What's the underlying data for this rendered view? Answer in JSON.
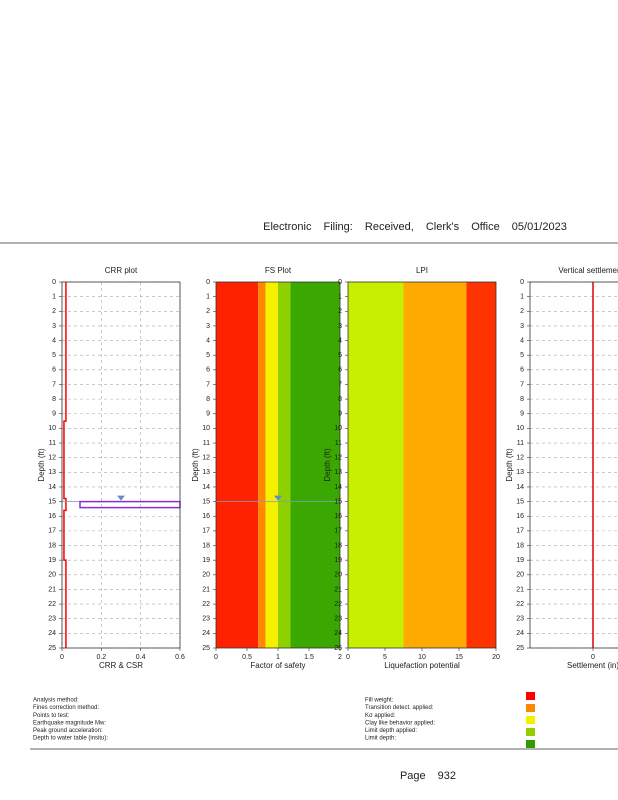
{
  "header": {
    "text": "Electronic Filing: Received, Clerk's Office 05/01/2023"
  },
  "plots": [
    {
      "type": "line",
      "title": "CRR plot",
      "xlabel": "CRR & CSR",
      "ylabel": "Depth (ft)",
      "xlim": [
        0,
        0.6
      ],
      "xticks": [
        0,
        0.2,
        0.4,
        0.6
      ],
      "ylim": [
        0,
        25
      ],
      "yticks": [
        0,
        1,
        2,
        3,
        4,
        5,
        6,
        7,
        8,
        9,
        10,
        11,
        12,
        13,
        14,
        15,
        16,
        17,
        18,
        19,
        20,
        21,
        22,
        23,
        24,
        25
      ],
      "series": [
        {
          "color": "#ff0000",
          "depth": [
            0,
            9.5,
            9.5,
            14.8,
            14.8,
            15.6,
            15.6,
            19,
            19,
            25
          ],
          "values": [
            0.02,
            0.02,
            0.01,
            0.01,
            0.02,
            0.02,
            0.01,
            0.01,
            0.02,
            0.02
          ]
        }
      ],
      "water_depth": 15,
      "water_color": "#8a2be2"
    },
    {
      "type": "bands",
      "title": "FS Plot",
      "xlabel": "Factor of safety",
      "ylabel": "Depth (ft)",
      "xlim": [
        0,
        2
      ],
      "xticks": [
        0,
        0.5,
        1,
        1.5,
        2
      ],
      "ylim": [
        0,
        25
      ],
      "yticks": [
        0,
        1,
        2,
        3,
        4,
        5,
        6,
        7,
        8,
        9,
        10,
        11,
        12,
        13,
        14,
        15,
        16,
        17,
        18,
        19,
        20,
        21,
        22,
        23,
        24,
        25
      ],
      "bands": [
        {
          "from": 0,
          "to": 0.68,
          "color": "#ff2200"
        },
        {
          "from": 0.68,
          "to": 0.8,
          "color": "#ff8800"
        },
        {
          "from": 0.8,
          "to": 1.0,
          "color": "#f5f000"
        },
        {
          "from": 1.0,
          "to": 1.2,
          "color": "#8fd000"
        },
        {
          "from": 1.2,
          "to": 2,
          "color": "#3aa800"
        }
      ],
      "water_depth": 15
    },
    {
      "type": "bands",
      "title": "LPI",
      "xlabel": "Liquefaction potential",
      "ylabel": "Depth (ft)",
      "xlim": [
        0,
        20
      ],
      "xticks": [
        0,
        5,
        10,
        15,
        20
      ],
      "ylim": [
        0,
        25
      ],
      "yticks": [
        0,
        1,
        2,
        3,
        4,
        5,
        6,
        7,
        8,
        9,
        10,
        11,
        12,
        13,
        14,
        15,
        16,
        17,
        18,
        19,
        20,
        21,
        22,
        23,
        24,
        25
      ],
      "bands": [
        {
          "from": 0,
          "to": 7.5,
          "color": "#c8ef00"
        },
        {
          "from": 7.5,
          "to": 16,
          "color": "#ffaa00"
        },
        {
          "from": 16,
          "to": 20,
          "color": "#ff3300"
        }
      ]
    },
    {
      "type": "line",
      "title": "Vertical settlements",
      "xlabel": "Settlement (in)",
      "ylabel": "Depth (ft)",
      "xlim": [
        -1,
        1
      ],
      "xticks": [
        0
      ],
      "ylim": [
        0,
        25
      ],
      "yticks": [
        0,
        1,
        2,
        3,
        4,
        5,
        6,
        7,
        8,
        9,
        10,
        11,
        12,
        13,
        14,
        15,
        16,
        17,
        18,
        19,
        20,
        21,
        22,
        23,
        24,
        25
      ],
      "series": [
        {
          "color": "#e00000",
          "depth": [
            0,
            25
          ],
          "values": [
            0,
            0
          ]
        }
      ]
    }
  ],
  "legend": {
    "left": [
      "Analysis method:",
      "Fines correction method:",
      "Points to test:",
      "Earthquake magnitude Mw:",
      "Peak ground acceleration:",
      "Depth to water table (insitu):"
    ],
    "right": [
      "Fill weight:",
      "Transition detect. applied:",
      "Kσ applied:",
      "Clay like behavior applied:",
      "Limit depth applied:",
      "Limit depth:"
    ],
    "colors": [
      "#ff0000",
      "#ff8800",
      "#f5f000",
      "#99cc00",
      "#339900"
    ]
  },
  "footer": {
    "text": "Page 932"
  }
}
